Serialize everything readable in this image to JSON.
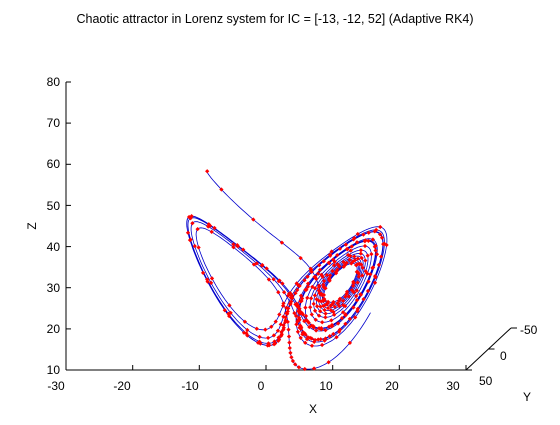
{
  "chart_data": {
    "type": "scatter",
    "title": "Chaotic attractor in Lorenz system for IC = [-13, -12, 52] (Adaptive RK4)",
    "xlabel": "X",
    "ylabel": "Y",
    "zlabel": "Z",
    "xlim": [
      -30,
      30
    ],
    "ylim": [
      -50,
      50
    ],
    "zlim": [
      10,
      80
    ],
    "xticks": [
      "-30",
      "-20",
      "-10",
      "0",
      "10",
      "20",
      "30"
    ],
    "yticks": [
      "-50",
      "0",
      "50"
    ],
    "zticks": [
      "10",
      "20",
      "30",
      "40",
      "50",
      "60",
      "70",
      "80"
    ],
    "grid": false,
    "colors": {
      "trajectory": "#0000cc",
      "points": "#ff0000"
    },
    "series": []
  }
}
